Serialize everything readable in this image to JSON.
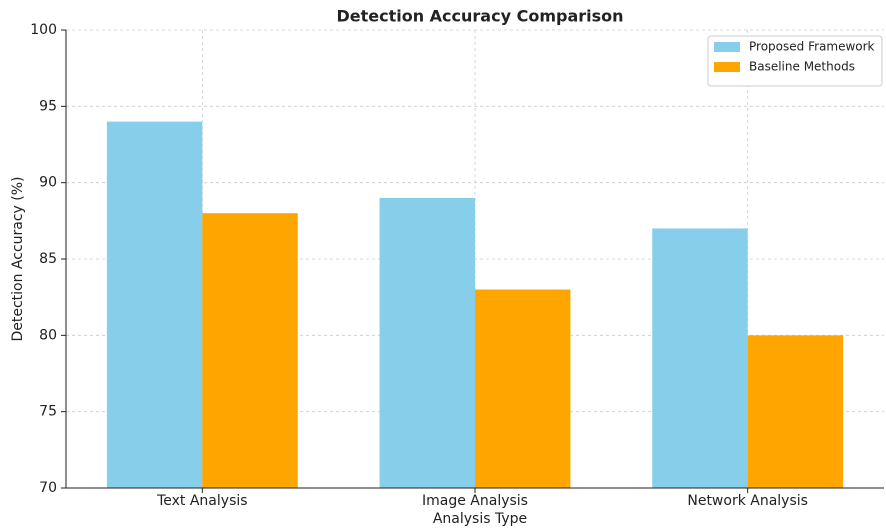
{
  "chart_data": {
    "type": "bar",
    "title": "Detection Accuracy Comparison",
    "x_label": "Analysis Type",
    "y_label": "Detection Accuracy (%)",
    "categories": [
      "Text Analysis",
      "Image Analysis",
      "Network Analysis"
    ],
    "series": [
      {
        "name": "Proposed Framework",
        "color": "#87ceeb",
        "values": [
          94,
          89,
          87
        ]
      },
      {
        "name": "Baseline Methods",
        "color": "#ffa500",
        "values": [
          88,
          83,
          80
        ]
      }
    ],
    "ylim": [
      70,
      100
    ],
    "yticks": [
      70,
      75,
      80,
      85,
      90,
      95,
      100
    ],
    "grid": true,
    "legend": "upper right"
  }
}
